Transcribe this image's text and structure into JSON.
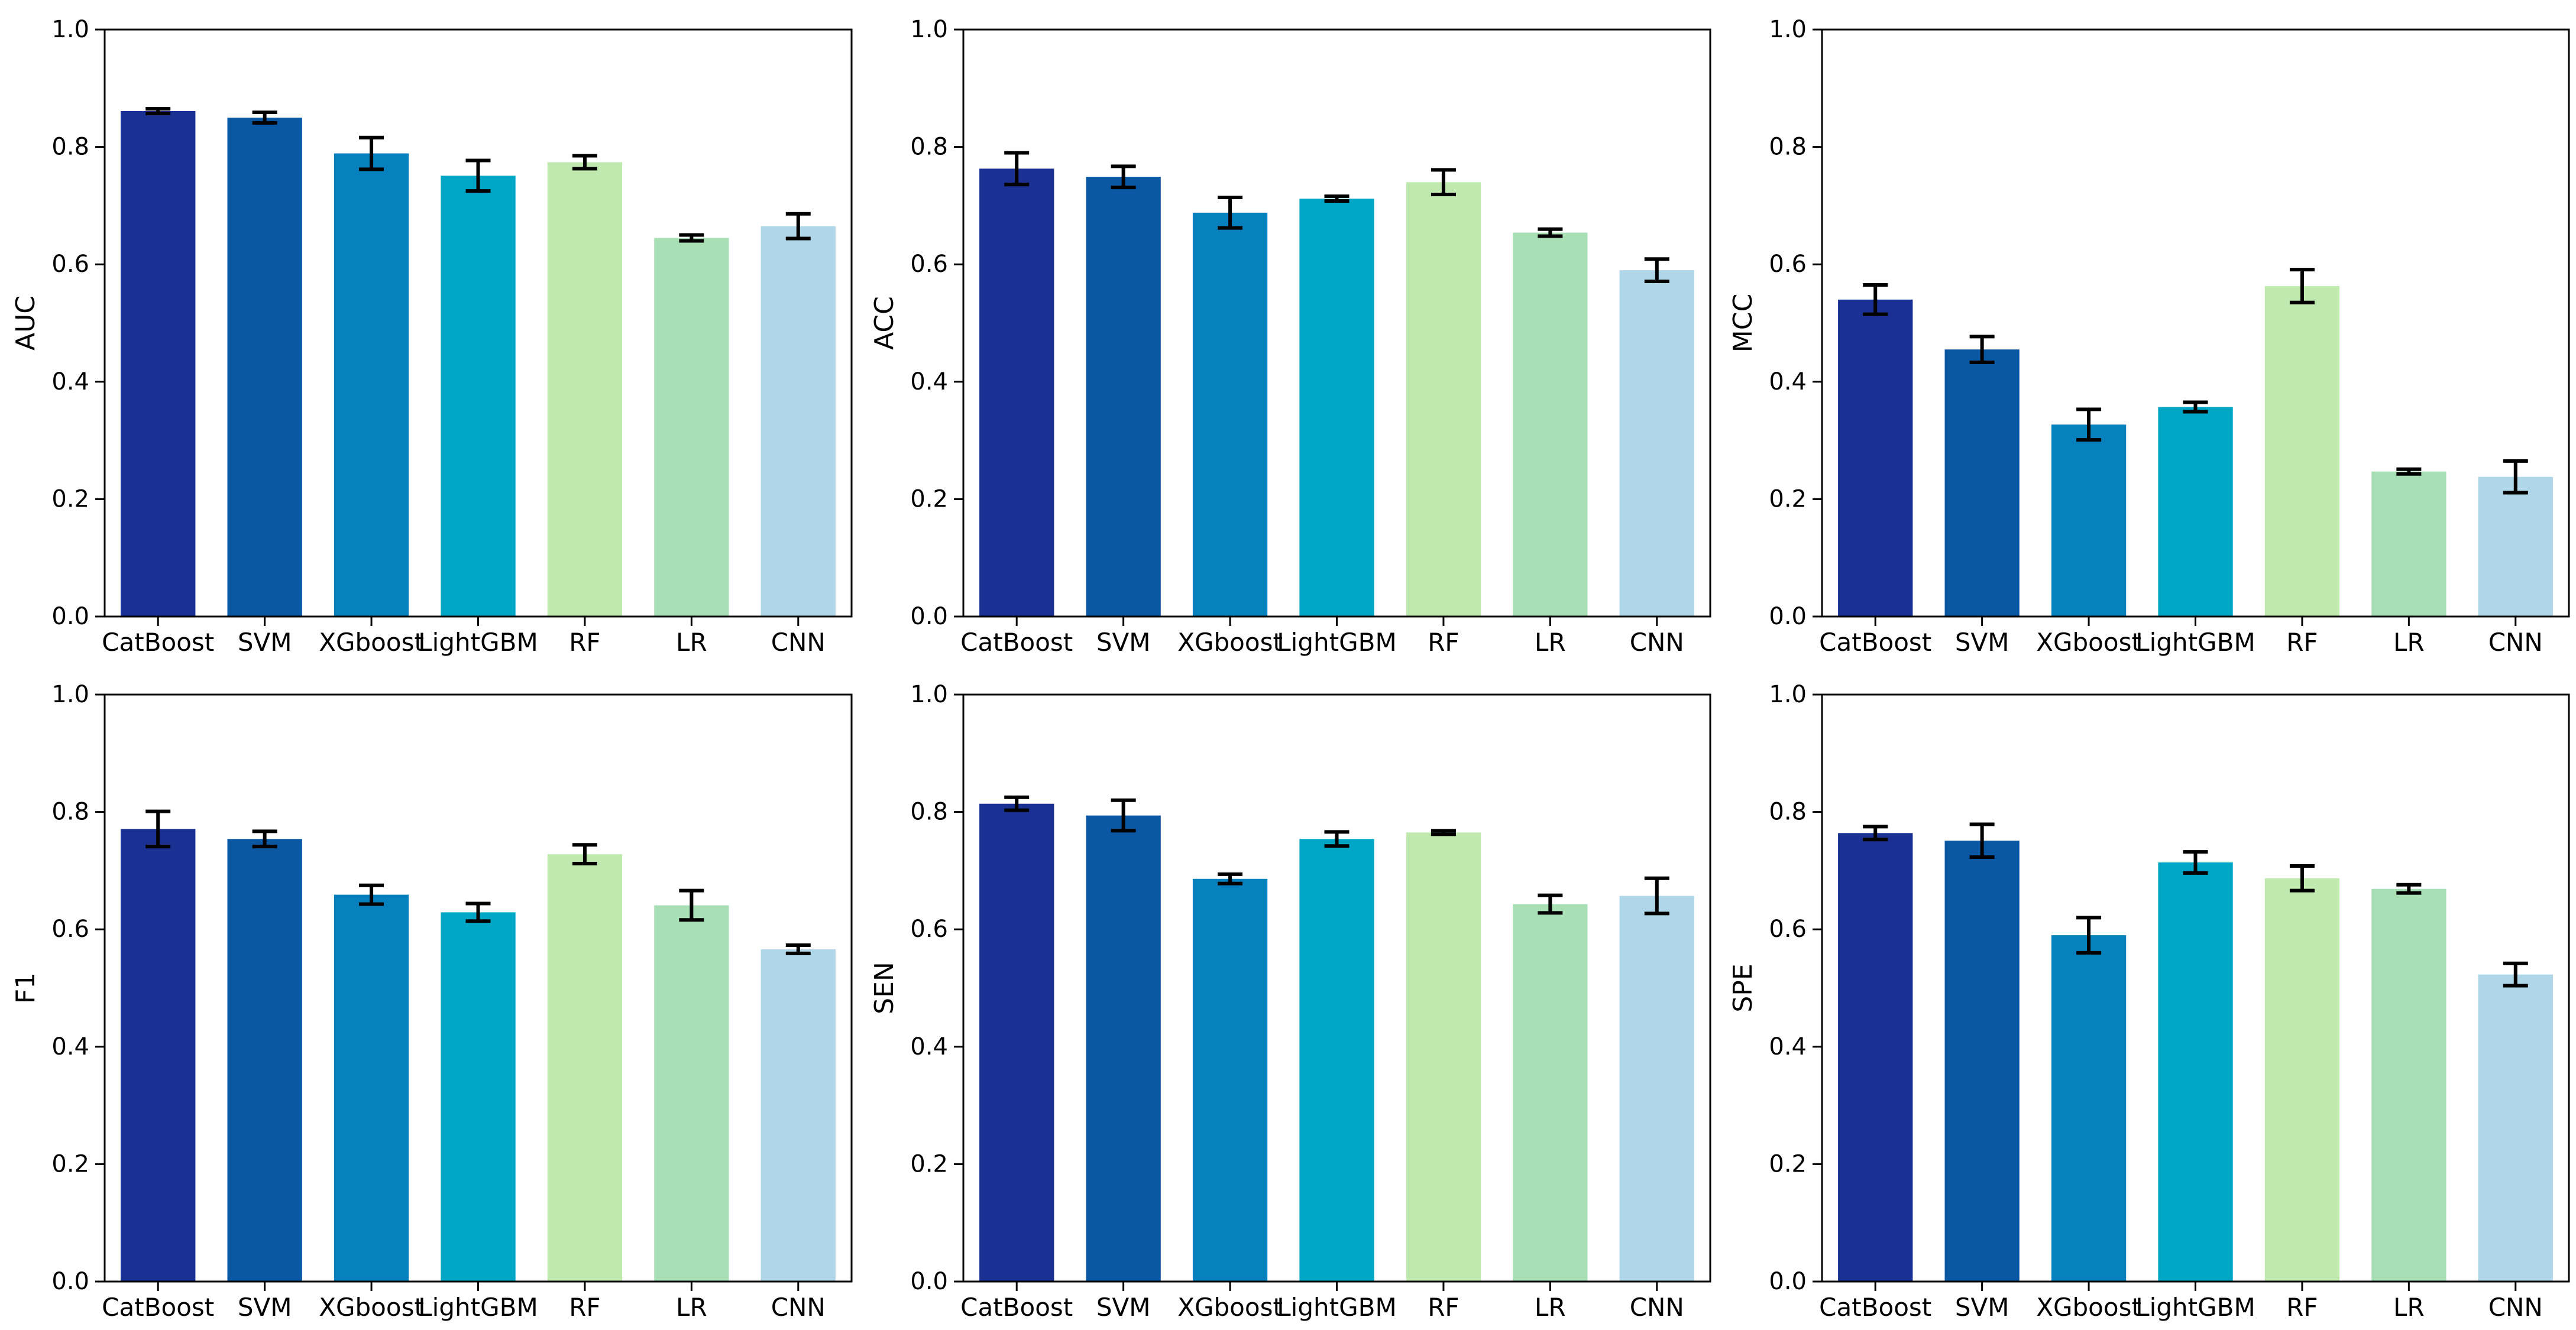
{
  "figure": {
    "background": "#ffffff",
    "axis_color": "#000000",
    "errorbar_color": "#000000"
  },
  "palette": {
    "CatBoost": "#1A3193",
    "SVM": "#0A57A4",
    "XGboost": "#0780BE",
    "LightGBM": "#00A6C6",
    "RF": "#BFE9AF",
    "LR": "#A9DFB4",
    "CNN": "#B0D6E9"
  },
  "chart_data": [
    {
      "type": "bar",
      "ylabel": "AUC",
      "ylim": [
        0.0,
        1.0
      ],
      "ytick_labels": [
        "0.0",
        "0.2",
        "0.4",
        "0.6",
        "0.8",
        "1.0"
      ],
      "categories": [
        "CatBoost",
        "SVM",
        "XGboost",
        "LightGBM",
        "RF",
        "LR",
        "CNN"
      ],
      "values": [
        0.861,
        0.85,
        0.789,
        0.751,
        0.774,
        0.645,
        0.665
      ],
      "errors": [
        0.004,
        0.009,
        0.027,
        0.026,
        0.011,
        0.005,
        0.021
      ],
      "grid": false,
      "legend": null
    },
    {
      "type": "bar",
      "ylabel": "ACC",
      "ylim": [
        0.0,
        1.0
      ],
      "ytick_labels": [
        "0.0",
        "0.2",
        "0.4",
        "0.6",
        "0.8",
        "1.0"
      ],
      "categories": [
        "CatBoost",
        "SVM",
        "XGboost",
        "LightGBM",
        "RF",
        "LR",
        "CNN"
      ],
      "values": [
        0.763,
        0.749,
        0.688,
        0.712,
        0.74,
        0.654,
        0.59
      ],
      "errors": [
        0.027,
        0.018,
        0.026,
        0.004,
        0.021,
        0.006,
        0.019
      ],
      "grid": false,
      "legend": null
    },
    {
      "type": "bar",
      "ylabel": "MCC",
      "ylim": [
        0.0,
        1.0
      ],
      "ytick_labels": [
        "0.0",
        "0.2",
        "0.4",
        "0.6",
        "0.8",
        "1.0"
      ],
      "categories": [
        "CatBoost",
        "SVM",
        "XGboost",
        "LightGBM",
        "RF",
        "LR",
        "CNN"
      ],
      "values": [
        0.54,
        0.455,
        0.327,
        0.357,
        0.563,
        0.247,
        0.238
      ],
      "errors": [
        0.025,
        0.022,
        0.026,
        0.008,
        0.028,
        0.004,
        0.027
      ],
      "grid": false,
      "legend": null
    },
    {
      "type": "bar",
      "ylabel": "F1",
      "ylim": [
        0.0,
        1.0
      ],
      "ytick_labels": [
        "0.0",
        "0.2",
        "0.4",
        "0.6",
        "0.8",
        "1.0"
      ],
      "categories": [
        "CatBoost",
        "SVM",
        "XGboost",
        "LightGBM",
        "RF",
        "LR",
        "CNN"
      ],
      "values": [
        0.771,
        0.754,
        0.659,
        0.629,
        0.728,
        0.641,
        0.566
      ],
      "errors": [
        0.03,
        0.013,
        0.016,
        0.015,
        0.016,
        0.025,
        0.007
      ],
      "grid": false,
      "legend": null
    },
    {
      "type": "bar",
      "ylabel": "SEN",
      "ylim": [
        0.0,
        1.0
      ],
      "ytick_labels": [
        "0.0",
        "0.2",
        "0.4",
        "0.6",
        "0.8",
        "1.0"
      ],
      "categories": [
        "CatBoost",
        "SVM",
        "XGboost",
        "LightGBM",
        "RF",
        "LR",
        "CNN"
      ],
      "values": [
        0.814,
        0.794,
        0.686,
        0.754,
        0.765,
        0.643,
        0.657
      ],
      "errors": [
        0.011,
        0.026,
        0.008,
        0.012,
        0.003,
        0.015,
        0.03
      ],
      "grid": false,
      "legend": null
    },
    {
      "type": "bar",
      "ylabel": "SPE",
      "ylim": [
        0.0,
        1.0
      ],
      "ytick_labels": [
        "0.0",
        "0.2",
        "0.4",
        "0.6",
        "0.8",
        "1.0"
      ],
      "categories": [
        "CatBoost",
        "SVM",
        "XGboost",
        "LightGBM",
        "RF",
        "LR",
        "CNN"
      ],
      "values": [
        0.764,
        0.751,
        0.59,
        0.714,
        0.687,
        0.669,
        0.523
      ],
      "errors": [
        0.011,
        0.028,
        0.03,
        0.018,
        0.021,
        0.007,
        0.019
      ],
      "grid": false,
      "legend": null
    }
  ]
}
